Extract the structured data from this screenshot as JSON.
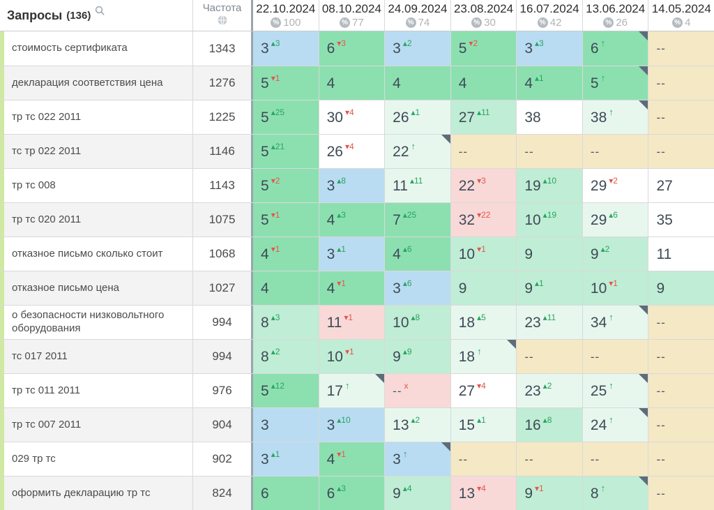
{
  "header": {
    "queries_label": "Запросы",
    "queries_count": "(136)",
    "frequency_label": "Частота",
    "icons": {
      "search": "search-icon (magnifier)",
      "frequency": "globe-icon",
      "percent": "percent-badge-icon"
    },
    "columns": [
      {
        "date": "22.10.2024",
        "percent": "100"
      },
      {
        "date": "08.10.2024",
        "percent": "77"
      },
      {
        "date": "24.09.2024",
        "percent": "74"
      },
      {
        "date": "23.08.2024",
        "percent": "30"
      },
      {
        "date": "16.07.2024",
        "percent": "42"
      },
      {
        "date": "13.06.2024",
        "percent": "26"
      },
      {
        "date": "14.05.2024",
        "percent": "4"
      }
    ]
  },
  "colors": {
    "blue": "#b9dcf2",
    "g1": "#8ce0b0",
    "g2": "#c0edd5",
    "g3": "#e7f7ee",
    "pink": "#f8d9d8",
    "tan": "#f4e8c5",
    "stripe": "#f3f3f3",
    "strip": "#cfe9a3",
    "border": "#d9d9d9",
    "divider": "#99a4ac",
    "pos_text": "#3e4a56",
    "delta_green": "#27a561",
    "delta_red": "#e2574a",
    "corner": "#5c6c78",
    "pct_text": "#b3b3b3"
  },
  "rows": [
    {
      "keyword": "стоимость сертификата",
      "frequency": "1343",
      "cells": [
        {
          "pos": "3",
          "delta": "3",
          "dir": "up",
          "bg": "blue"
        },
        {
          "pos": "6",
          "delta": "3",
          "dir": "down",
          "bg": "g1"
        },
        {
          "pos": "3",
          "delta": "2",
          "dir": "up",
          "bg": "blue"
        },
        {
          "pos": "5",
          "delta": "2",
          "dir": "down",
          "bg": "g1"
        },
        {
          "pos": "3",
          "delta": "3",
          "dir": "up",
          "bg": "blue"
        },
        {
          "pos": "6",
          "dir": "arrow",
          "bg": "g1",
          "corner": true
        },
        {
          "pos": "--",
          "bg": "tan"
        }
      ]
    },
    {
      "keyword": "декларация соответствия цена",
      "frequency": "1276",
      "cells": [
        {
          "pos": "5",
          "delta": "1",
          "dir": "down",
          "bg": "g1"
        },
        {
          "pos": "4",
          "bg": "g1"
        },
        {
          "pos": "4",
          "bg": "g1"
        },
        {
          "pos": "4",
          "bg": "g1"
        },
        {
          "pos": "4",
          "delta": "1",
          "dir": "up",
          "bg": "g1"
        },
        {
          "pos": "5",
          "dir": "arrow",
          "bg": "g1",
          "corner": true
        },
        {
          "pos": "--",
          "bg": "tan"
        }
      ]
    },
    {
      "keyword": "тр тс 022 2011",
      "frequency": "1225",
      "cells": [
        {
          "pos": "5",
          "delta": "25",
          "dir": "up",
          "bg": "g1"
        },
        {
          "pos": "30",
          "delta": "4",
          "dir": "down",
          "bg": "white"
        },
        {
          "pos": "26",
          "delta": "1",
          "dir": "up",
          "bg": "g3"
        },
        {
          "pos": "27",
          "delta": "11",
          "dir": "up",
          "bg": "g2"
        },
        {
          "pos": "38",
          "bg": "white"
        },
        {
          "pos": "38",
          "dir": "arrow",
          "bg": "g3",
          "corner": true
        },
        {
          "pos": "--",
          "bg": "tan"
        }
      ]
    },
    {
      "keyword": "тс тр 022 2011",
      "frequency": "1146",
      "cells": [
        {
          "pos": "5",
          "delta": "21",
          "dir": "up",
          "bg": "g1"
        },
        {
          "pos": "26",
          "delta": "4",
          "dir": "down",
          "bg": "white"
        },
        {
          "pos": "22",
          "dir": "arrow",
          "bg": "g3",
          "corner": true
        },
        {
          "pos": "--",
          "bg": "tan"
        },
        {
          "pos": "--",
          "bg": "tan"
        },
        {
          "pos": "--",
          "bg": "tan"
        },
        {
          "pos": "--",
          "bg": "tan"
        }
      ]
    },
    {
      "keyword": "тр тс 008",
      "frequency": "1143",
      "cells": [
        {
          "pos": "5",
          "delta": "2",
          "dir": "down",
          "bg": "g1"
        },
        {
          "pos": "3",
          "delta": "8",
          "dir": "up",
          "bg": "blue"
        },
        {
          "pos": "11",
          "delta": "11",
          "dir": "up",
          "bg": "g3"
        },
        {
          "pos": "22",
          "delta": "3",
          "dir": "down",
          "bg": "pink"
        },
        {
          "pos": "19",
          "delta": "10",
          "dir": "up",
          "bg": "g2"
        },
        {
          "pos": "29",
          "delta": "2",
          "dir": "down",
          "bg": "white"
        },
        {
          "pos": "27",
          "bg": "white"
        }
      ]
    },
    {
      "keyword": "тр тс 020 2011",
      "frequency": "1075",
      "cells": [
        {
          "pos": "5",
          "delta": "1",
          "dir": "down",
          "bg": "g1"
        },
        {
          "pos": "4",
          "delta": "3",
          "dir": "up",
          "bg": "g1"
        },
        {
          "pos": "7",
          "delta": "25",
          "dir": "up",
          "bg": "g1"
        },
        {
          "pos": "32",
          "delta": "22",
          "dir": "down",
          "bg": "pink"
        },
        {
          "pos": "10",
          "delta": "19",
          "dir": "up",
          "bg": "g2"
        },
        {
          "pos": "29",
          "delta": "6",
          "dir": "up",
          "bg": "g3"
        },
        {
          "pos": "35",
          "bg": "white"
        }
      ]
    },
    {
      "keyword": "отказное письмо сколько стоит",
      "frequency": "1068",
      "cells": [
        {
          "pos": "4",
          "delta": "1",
          "dir": "down",
          "bg": "g1"
        },
        {
          "pos": "3",
          "delta": "1",
          "dir": "up",
          "bg": "blue"
        },
        {
          "pos": "4",
          "delta": "6",
          "dir": "up",
          "bg": "g1"
        },
        {
          "pos": "10",
          "delta": "1",
          "dir": "down",
          "bg": "g2"
        },
        {
          "pos": "9",
          "bg": "g2"
        },
        {
          "pos": "9",
          "delta": "2",
          "dir": "up",
          "bg": "g2"
        },
        {
          "pos": "11",
          "bg": "white"
        }
      ]
    },
    {
      "keyword": "отказное письмо цена",
      "frequency": "1027",
      "cells": [
        {
          "pos": "4",
          "bg": "g1"
        },
        {
          "pos": "4",
          "delta": "1",
          "dir": "down",
          "bg": "g1"
        },
        {
          "pos": "3",
          "delta": "6",
          "dir": "up",
          "bg": "blue"
        },
        {
          "pos": "9",
          "bg": "g2"
        },
        {
          "pos": "9",
          "delta": "1",
          "dir": "up",
          "bg": "g2"
        },
        {
          "pos": "10",
          "delta": "1",
          "dir": "down",
          "bg": "g2"
        },
        {
          "pos": "9",
          "bg": "g2"
        }
      ]
    },
    {
      "keyword": "о безопасности низковольтного оборудования",
      "frequency": "994",
      "cells": [
        {
          "pos": "8",
          "delta": "3",
          "dir": "up",
          "bg": "g2"
        },
        {
          "pos": "11",
          "delta": "1",
          "dir": "down",
          "bg": "pink"
        },
        {
          "pos": "10",
          "delta": "8",
          "dir": "up",
          "bg": "g2"
        },
        {
          "pos": "18",
          "delta": "5",
          "dir": "up",
          "bg": "g3"
        },
        {
          "pos": "23",
          "delta": "11",
          "dir": "up",
          "bg": "g3"
        },
        {
          "pos": "34",
          "dir": "arrow",
          "bg": "g3",
          "corner": true
        },
        {
          "pos": "--",
          "bg": "tan"
        }
      ]
    },
    {
      "keyword": "тс 017 2011",
      "frequency": "994",
      "cells": [
        {
          "pos": "8",
          "delta": "2",
          "dir": "up",
          "bg": "g2"
        },
        {
          "pos": "10",
          "delta": "1",
          "dir": "down",
          "bg": "g2"
        },
        {
          "pos": "9",
          "delta": "9",
          "dir": "up",
          "bg": "g2"
        },
        {
          "pos": "18",
          "dir": "arrow",
          "bg": "g3",
          "corner": true
        },
        {
          "pos": "--",
          "bg": "tan"
        },
        {
          "pos": "--",
          "bg": "tan"
        },
        {
          "pos": "--",
          "bg": "tan"
        }
      ]
    },
    {
      "keyword": "тр тс 011 2011",
      "frequency": "976",
      "cells": [
        {
          "pos": "5",
          "delta": "12",
          "dir": "up",
          "bg": "g1"
        },
        {
          "pos": "17",
          "dir": "arrow",
          "bg": "g3",
          "corner": true
        },
        {
          "pos": "--",
          "dir": "lost",
          "bg": "pink"
        },
        {
          "pos": "27",
          "delta": "4",
          "dir": "down",
          "bg": "white"
        },
        {
          "pos": "23",
          "delta": "2",
          "dir": "up",
          "bg": "g3"
        },
        {
          "pos": "25",
          "dir": "arrow",
          "bg": "g3",
          "corner": true
        },
        {
          "pos": "--",
          "bg": "tan"
        }
      ]
    },
    {
      "keyword": "тр тс 007 2011",
      "frequency": "904",
      "cells": [
        {
          "pos": "3",
          "bg": "blue"
        },
        {
          "pos": "3",
          "delta": "10",
          "dir": "up",
          "bg": "blue"
        },
        {
          "pos": "13",
          "delta": "2",
          "dir": "up",
          "bg": "g3"
        },
        {
          "pos": "15",
          "delta": "1",
          "dir": "up",
          "bg": "g3"
        },
        {
          "pos": "16",
          "delta": "8",
          "dir": "up",
          "bg": "g2"
        },
        {
          "pos": "24",
          "dir": "arrow",
          "bg": "g3",
          "corner": true
        },
        {
          "pos": "--",
          "bg": "tan"
        }
      ]
    },
    {
      "keyword": "029 тр тс",
      "frequency": "902",
      "cells": [
        {
          "pos": "3",
          "delta": "1",
          "dir": "up",
          "bg": "blue"
        },
        {
          "pos": "4",
          "delta": "1",
          "dir": "down",
          "bg": "g1"
        },
        {
          "pos": "3",
          "dir": "arrow",
          "bg": "blue",
          "corner": true
        },
        {
          "pos": "--",
          "bg": "tan"
        },
        {
          "pos": "--",
          "bg": "tan"
        },
        {
          "pos": "--",
          "bg": "tan"
        },
        {
          "pos": "--",
          "bg": "tan"
        }
      ]
    },
    {
      "keyword": "оформить декларацию тр тс",
      "frequency": "824",
      "cells": [
        {
          "pos": "6",
          "bg": "g1"
        },
        {
          "pos": "6",
          "delta": "3",
          "dir": "up",
          "bg": "g1"
        },
        {
          "pos": "9",
          "delta": "4",
          "dir": "up",
          "bg": "g2"
        },
        {
          "pos": "13",
          "delta": "4",
          "dir": "down",
          "bg": "pink"
        },
        {
          "pos": "9",
          "delta": "1",
          "dir": "down",
          "bg": "g2"
        },
        {
          "pos": "8",
          "dir": "arrow",
          "bg": "g2",
          "corner": true
        },
        {
          "pos": "--",
          "bg": "tan"
        }
      ]
    }
  ]
}
